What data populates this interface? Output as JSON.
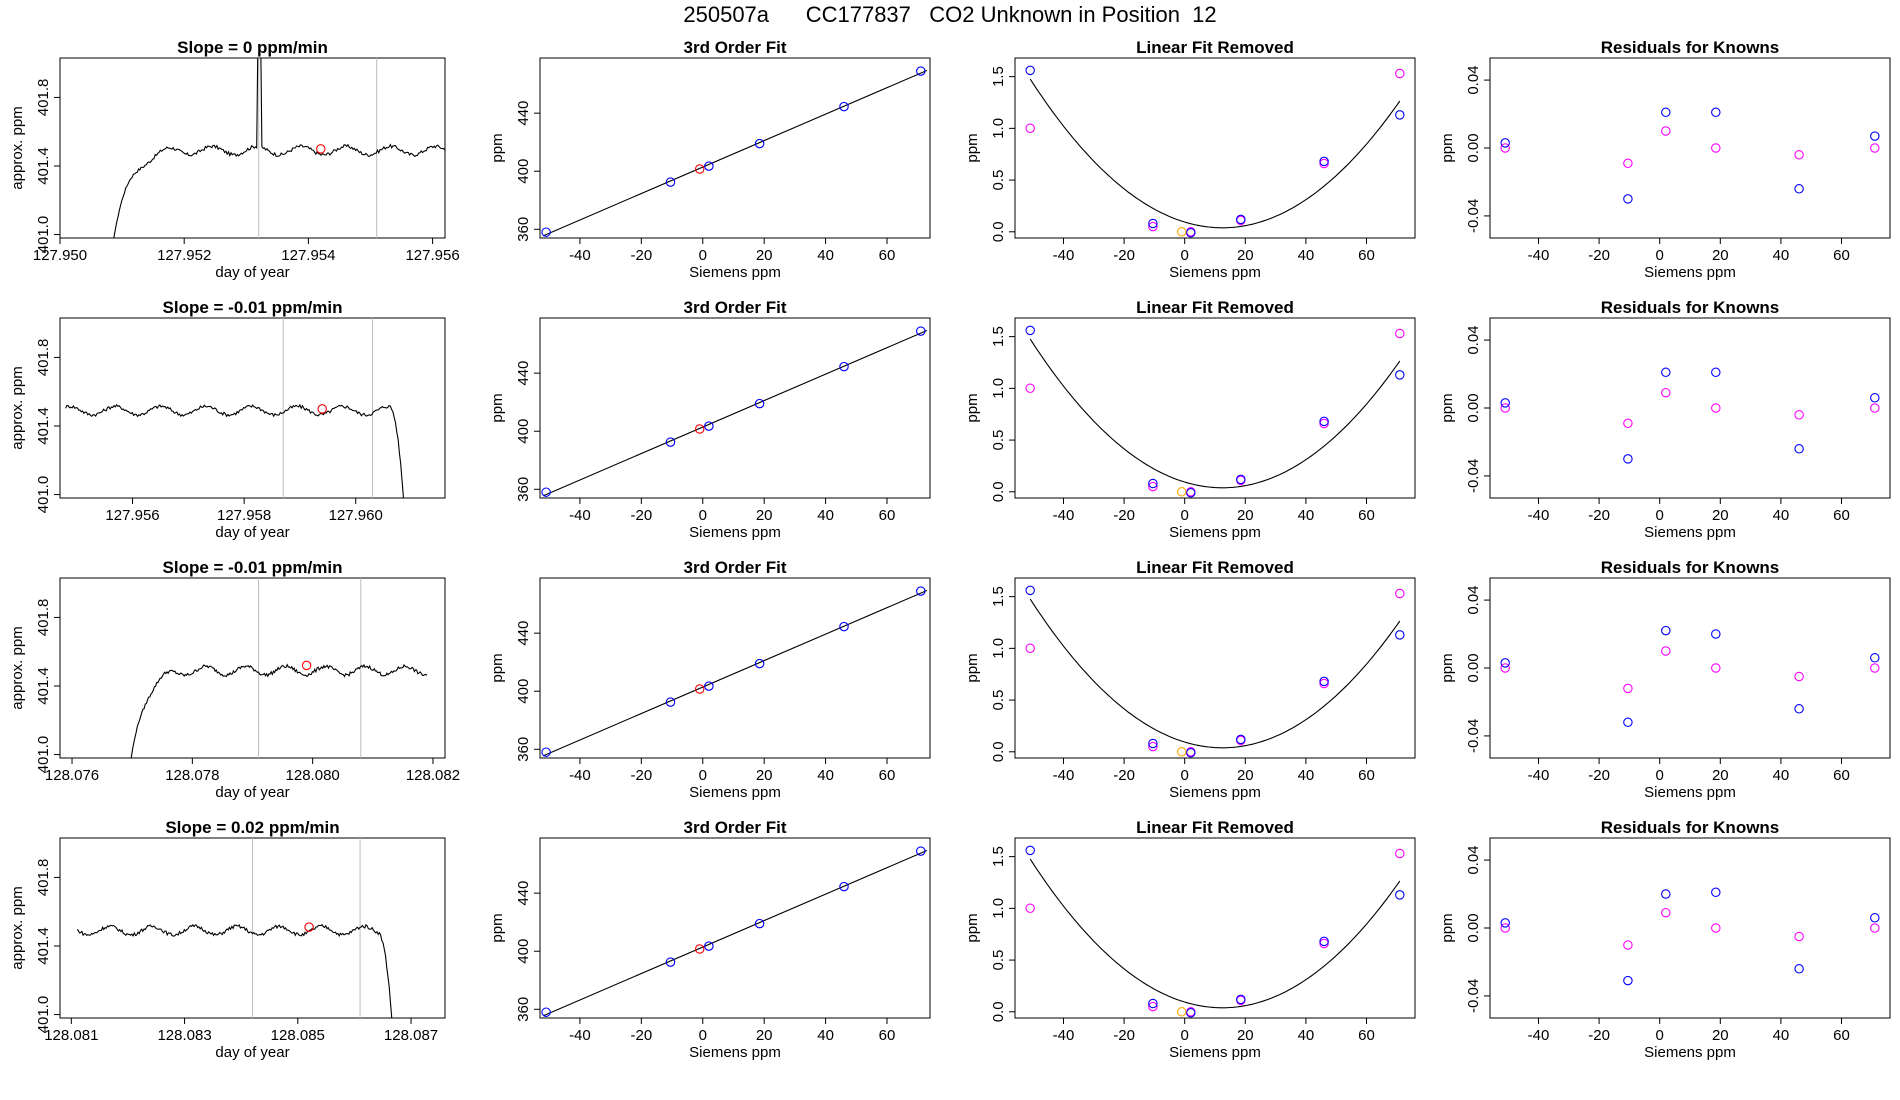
{
  "title": {
    "run_id": "250507a",
    "tank": "CC177837",
    "description": "CO2 Unknown in Position  12"
  },
  "colors": {
    "trace": "#000000",
    "marker_red": "#ff0000",
    "marker_blue": "#0000ff",
    "marker_magenta": "#ff00ff",
    "marker_orange": "#ffa500",
    "vline": "#bebebe"
  },
  "chart_data": [
    {
      "type": "line",
      "row": 1,
      "column": "slope",
      "title": "Slope =  0  ppm/min",
      "xlabel": "day of year",
      "ylabel": "approx. ppm",
      "xlim": [
        127.95,
        127.9562
      ],
      "ylim": [
        400.98,
        402.03
      ],
      "xticks": [
        "127.950",
        "127.952",
        "127.954",
        "127.956"
      ],
      "yticks": [
        "401.0",
        "401.4",
        "401.8"
      ],
      "vlines": [
        127.9532,
        127.9551
      ],
      "marker": {
        "x": 127.9542,
        "y": 401.5
      },
      "profile": "rise_spike",
      "trace_x": [
        127.95083,
        127.95621
      ]
    },
    {
      "type": "line",
      "row": 2,
      "column": "slope",
      "title": "Slope =  -0.01  ppm/min",
      "xlabel": "day of year",
      "ylabel": "approx. ppm",
      "xlim": [
        127.9547,
        127.9616
      ],
      "ylim": [
        400.98,
        402.03
      ],
      "xticks": [
        "127.956",
        "127.958",
        "127.960"
      ],
      "yticks": [
        "401.0",
        "401.4",
        "401.8"
      ],
      "vlines": [
        127.9587,
        127.9603
      ],
      "marker": {
        "x": 127.9594,
        "y": 401.5
      },
      "profile": "flat_drop",
      "trace_x": [
        127.9548,
        127.9609
      ]
    },
    {
      "type": "line",
      "row": 3,
      "column": "slope",
      "title": "Slope =  -0.01  ppm/min",
      "xlabel": "day of year",
      "ylabel": "approx. ppm",
      "xlim": [
        128.0758,
        128.0822
      ],
      "ylim": [
        400.98,
        402.03
      ],
      "xticks": [
        "128.076",
        "128.078",
        "128.080",
        "128.082"
      ],
      "yticks": [
        "401.0",
        "401.4",
        "401.8"
      ],
      "vlines": [
        128.0791,
        128.0808
      ],
      "marker": {
        "x": 128.0799,
        "y": 401.52
      },
      "profile": "rise",
      "trace_x": [
        128.07695,
        128.0819
      ]
    },
    {
      "type": "line",
      "row": 4,
      "column": "slope",
      "title": "Slope =  0.02  ppm/min",
      "xlabel": "day of year",
      "ylabel": "approx. ppm",
      "xlim": [
        128.0808,
        128.0876
      ],
      "ylim": [
        400.98,
        402.03
      ],
      "xticks": [
        "128.081",
        "128.083",
        "128.085",
        "128.087"
      ],
      "yticks": [
        "401.0",
        "401.4",
        "401.8"
      ],
      "vlines": [
        128.0842,
        128.0861
      ],
      "marker": {
        "x": 128.0852,
        "y": 401.51
      },
      "profile": "flat_drop",
      "trace_x": [
        128.0811,
        128.0867
      ]
    },
    {
      "type": "line",
      "row": 1,
      "column": "fit",
      "title": "3rd Order Fit",
      "xlabel": "Siemens ppm",
      "ylabel": "ppm",
      "xlim": [
        -53,
        74
      ],
      "ylim": [
        354,
        478
      ],
      "xticks": [
        "-40",
        "-20",
        "0",
        "20",
        "40",
        "60"
      ],
      "yticks": [
        "360",
        "400",
        "440"
      ],
      "points": [
        [
          -51,
          358
        ],
        [
          -10.5,
          392.5
        ],
        [
          2,
          403.5
        ],
        [
          18.5,
          419
        ],
        [
          46,
          444.5
        ],
        [
          71,
          469
        ]
      ],
      "unknown": [
        -1,
        401.5
      ]
    },
    {
      "type": "line",
      "row": 2,
      "column": "fit",
      "title": "3rd Order Fit",
      "xlabel": "Siemens ppm",
      "ylabel": "ppm",
      "xlim": [
        -53,
        74
      ],
      "ylim": [
        354,
        478
      ],
      "xticks": [
        "-40",
        "-20",
        "0",
        "20",
        "40",
        "60"
      ],
      "yticks": [
        "360",
        "400",
        "440"
      ],
      "points": [
        [
          -51,
          358
        ],
        [
          -10.5,
          392.5
        ],
        [
          2,
          403.5
        ],
        [
          18.5,
          419
        ],
        [
          46,
          444.5
        ],
        [
          71,
          469
        ]
      ],
      "unknown": [
        -1,
        401.5
      ]
    },
    {
      "type": "line",
      "row": 3,
      "column": "fit",
      "title": "3rd Order Fit",
      "xlabel": "Siemens ppm",
      "ylabel": "ppm",
      "xlim": [
        -53,
        74
      ],
      "ylim": [
        354,
        478
      ],
      "xticks": [
        "-40",
        "-20",
        "0",
        "20",
        "40",
        "60"
      ],
      "yticks": [
        "360",
        "400",
        "440"
      ],
      "points": [
        [
          -51,
          358
        ],
        [
          -10.5,
          392.5
        ],
        [
          2,
          403.5
        ],
        [
          18.5,
          419
        ],
        [
          46,
          444.5
        ],
        [
          71,
          469
        ]
      ],
      "unknown": [
        -1,
        401.5
      ]
    },
    {
      "type": "line",
      "row": 4,
      "column": "fit",
      "title": "3rd Order Fit",
      "xlabel": "Siemens ppm",
      "ylabel": "ppm",
      "xlim": [
        -53,
        74
      ],
      "ylim": [
        354,
        478
      ],
      "xticks": [
        "-40",
        "-20",
        "0",
        "20",
        "40",
        "60"
      ],
      "yticks": [
        "360",
        "400",
        "440"
      ],
      "points": [
        [
          -51,
          358
        ],
        [
          -10.5,
          392.5
        ],
        [
          2,
          403.5
        ],
        [
          18.5,
          419
        ],
        [
          46,
          444.5
        ],
        [
          71,
          469
        ]
      ],
      "unknown": [
        -1,
        401.5
      ]
    },
    {
      "type": "scatter",
      "row": 1,
      "column": "linear",
      "title": "Linear Fit Removed",
      "xlabel": "Siemens ppm",
      "ylabel": "ppm",
      "xlim": [
        -56,
        76
      ],
      "ylim": [
        -0.06,
        1.68
      ],
      "xticks": [
        "-40",
        "-20",
        "0",
        "20",
        "40",
        "60"
      ],
      "yticks": [
        "0.0",
        "0.5",
        "1.0",
        "1.5"
      ],
      "curve_points": [
        [
          -51,
          1.55
        ],
        [
          -10.5,
          0.07
        ],
        [
          2,
          0
        ],
        [
          18.5,
          0.12
        ],
        [
          46,
          0.67
        ],
        [
          71,
          1.13
        ]
      ],
      "blue": [
        [
          -51,
          1.56
        ],
        [
          -10.5,
          0.08
        ],
        [
          2,
          -0.01
        ],
        [
          18.5,
          0.12
        ],
        [
          46,
          0.68
        ],
        [
          71,
          1.13
        ]
      ],
      "magenta": [
        [
          -51,
          1.0
        ],
        [
          -10.5,
          0.05
        ],
        [
          2,
          0.0
        ],
        [
          18.5,
          0.11
        ],
        [
          46,
          0.66
        ],
        [
          71,
          1.53
        ]
      ],
      "orange": [
        -1,
        0.0
      ]
    },
    {
      "type": "scatter",
      "row": 2,
      "column": "linear",
      "title": "Linear Fit Removed",
      "xlabel": "Siemens ppm",
      "ylabel": "ppm",
      "xlim": [
        -56,
        76
      ],
      "ylim": [
        -0.06,
        1.68
      ],
      "xticks": [
        "-40",
        "-20",
        "0",
        "20",
        "40",
        "60"
      ],
      "yticks": [
        "0.0",
        "0.5",
        "1.0",
        "1.5"
      ],
      "curve_points": [
        [
          -51,
          1.55
        ],
        [
          -10.5,
          0.07
        ],
        [
          2,
          0
        ],
        [
          18.5,
          0.12
        ],
        [
          46,
          0.67
        ],
        [
          71,
          1.13
        ]
      ],
      "blue": [
        [
          -51,
          1.56
        ],
        [
          -10.5,
          0.08
        ],
        [
          2,
          -0.01
        ],
        [
          18.5,
          0.12
        ],
        [
          46,
          0.68
        ],
        [
          71,
          1.13
        ]
      ],
      "magenta": [
        [
          -51,
          1.0
        ],
        [
          -10.5,
          0.05
        ],
        [
          2,
          0.0
        ],
        [
          18.5,
          0.11
        ],
        [
          46,
          0.66
        ],
        [
          71,
          1.53
        ]
      ],
      "orange": [
        -1,
        0.0
      ]
    },
    {
      "type": "scatter",
      "row": 3,
      "column": "linear",
      "title": "Linear Fit Removed",
      "xlabel": "Siemens ppm",
      "ylabel": "ppm",
      "xlim": [
        -56,
        76
      ],
      "ylim": [
        -0.06,
        1.68
      ],
      "xticks": [
        "-40",
        "-20",
        "0",
        "20",
        "40",
        "60"
      ],
      "yticks": [
        "0.0",
        "0.5",
        "1.0",
        "1.5"
      ],
      "curve_points": [
        [
          -51,
          1.55
        ],
        [
          -10.5,
          0.07
        ],
        [
          2,
          0
        ],
        [
          18.5,
          0.12
        ],
        [
          46,
          0.67
        ],
        [
          71,
          1.13
        ]
      ],
      "blue": [
        [
          -51,
          1.56
        ],
        [
          -10.5,
          0.08
        ],
        [
          2,
          -0.01
        ],
        [
          18.5,
          0.12
        ],
        [
          46,
          0.68
        ],
        [
          71,
          1.13
        ]
      ],
      "magenta": [
        [
          -51,
          1.0
        ],
        [
          -10.5,
          0.05
        ],
        [
          2,
          0.0
        ],
        [
          18.5,
          0.11
        ],
        [
          46,
          0.66
        ],
        [
          71,
          1.53
        ]
      ],
      "orange": [
        -1,
        0.0
      ]
    },
    {
      "type": "scatter",
      "row": 4,
      "column": "linear",
      "title": "Linear Fit Removed",
      "xlabel": "Siemens ppm",
      "ylabel": "ppm",
      "xlim": [
        -56,
        76
      ],
      "ylim": [
        -0.06,
        1.68
      ],
      "xticks": [
        "-40",
        "-20",
        "0",
        "20",
        "40",
        "60"
      ],
      "yticks": [
        "0.0",
        "0.5",
        "1.0",
        "1.5"
      ],
      "curve_points": [
        [
          -51,
          1.55
        ],
        [
          -10.5,
          0.07
        ],
        [
          2,
          0
        ],
        [
          18.5,
          0.12
        ],
        [
          46,
          0.67
        ],
        [
          71,
          1.13
        ]
      ],
      "blue": [
        [
          -51,
          1.56
        ],
        [
          -10.5,
          0.08
        ],
        [
          2,
          -0.01
        ],
        [
          18.5,
          0.12
        ],
        [
          46,
          0.68
        ],
        [
          71,
          1.13
        ]
      ],
      "magenta": [
        [
          -51,
          1.0
        ],
        [
          -10.5,
          0.05
        ],
        [
          2,
          0.0
        ],
        [
          18.5,
          0.11
        ],
        [
          46,
          0.66
        ],
        [
          71,
          1.53
        ]
      ],
      "orange": [
        -1,
        0.0
      ]
    },
    {
      "type": "scatter",
      "row": 1,
      "column": "residuals",
      "title": "Residuals for Knowns",
      "xlabel": "Siemens ppm",
      "ylabel": "ppm",
      "xlim": [
        -56,
        76
      ],
      "ylim": [
        -0.053,
        0.053
      ],
      "xticks": [
        "-40",
        "-20",
        "0",
        "20",
        "40",
        "60"
      ],
      "yticks": [
        "-0.04",
        "0.00",
        "0.04"
      ],
      "blue": [
        [
          -51,
          0.003
        ],
        [
          -10.5,
          -0.03
        ],
        [
          2,
          0.021
        ],
        [
          18.5,
          0.021
        ],
        [
          46,
          -0.024
        ],
        [
          71,
          0.007
        ]
      ],
      "magenta": [
        [
          -51,
          0.0
        ],
        [
          -10.5,
          -0.009
        ],
        [
          2,
          0.01
        ],
        [
          18.5,
          0.0
        ],
        [
          46,
          -0.004
        ],
        [
          71,
          0.0
        ]
      ]
    },
    {
      "type": "scatter",
      "row": 2,
      "column": "residuals",
      "title": "Residuals for Knowns",
      "xlabel": "Siemens ppm",
      "ylabel": "ppm",
      "xlim": [
        -56,
        76
      ],
      "ylim": [
        -0.053,
        0.053
      ],
      "xticks": [
        "-40",
        "-20",
        "0",
        "20",
        "40",
        "60"
      ],
      "yticks": [
        "-0.04",
        "0.00",
        "0.04"
      ],
      "blue": [
        [
          -51,
          0.003
        ],
        [
          -10.5,
          -0.03
        ],
        [
          2,
          0.021
        ],
        [
          18.5,
          0.021
        ],
        [
          46,
          -0.024
        ],
        [
          71,
          0.006
        ]
      ],
      "magenta": [
        [
          -51,
          0.0
        ],
        [
          -10.5,
          -0.009
        ],
        [
          2,
          0.009
        ],
        [
          18.5,
          0.0
        ],
        [
          46,
          -0.004
        ],
        [
          71,
          0.0
        ]
      ]
    },
    {
      "type": "scatter",
      "row": 3,
      "column": "residuals",
      "title": "Residuals for Knowns",
      "xlabel": "Siemens ppm",
      "ylabel": "ppm",
      "xlim": [
        -56,
        76
      ],
      "ylim": [
        -0.053,
        0.053
      ],
      "xticks": [
        "-40",
        "-20",
        "0",
        "20",
        "40",
        "60"
      ],
      "yticks": [
        "-0.04",
        "0.00",
        "0.04"
      ],
      "blue": [
        [
          -51,
          0.003
        ],
        [
          -10.5,
          -0.032
        ],
        [
          2,
          0.022
        ],
        [
          18.5,
          0.02
        ],
        [
          46,
          -0.024
        ],
        [
          71,
          0.006
        ]
      ],
      "magenta": [
        [
          -51,
          0.0
        ],
        [
          -10.5,
          -0.012
        ],
        [
          2,
          0.01
        ],
        [
          18.5,
          0.0
        ],
        [
          46,
          -0.005
        ],
        [
          71,
          0.0
        ]
      ]
    },
    {
      "type": "scatter",
      "row": 4,
      "column": "residuals",
      "title": "Residuals for Knowns",
      "xlabel": "Siemens ppm",
      "ylabel": "ppm",
      "xlim": [
        -56,
        76
      ],
      "ylim": [
        -0.053,
        0.053
      ],
      "xticks": [
        "-40",
        "-20",
        "0",
        "20",
        "40",
        "60"
      ],
      "yticks": [
        "-0.04",
        "0.00",
        "0.04"
      ],
      "blue": [
        [
          -51,
          0.003
        ],
        [
          -10.5,
          -0.031
        ],
        [
          2,
          0.02
        ],
        [
          18.5,
          0.021
        ],
        [
          46,
          -0.024
        ],
        [
          71,
          0.006
        ]
      ],
      "magenta": [
        [
          -51,
          0.0
        ],
        [
          -10.5,
          -0.01
        ],
        [
          2,
          0.009
        ],
        [
          18.5,
          0.0
        ],
        [
          46,
          -0.005
        ],
        [
          71,
          0.0
        ]
      ]
    }
  ]
}
